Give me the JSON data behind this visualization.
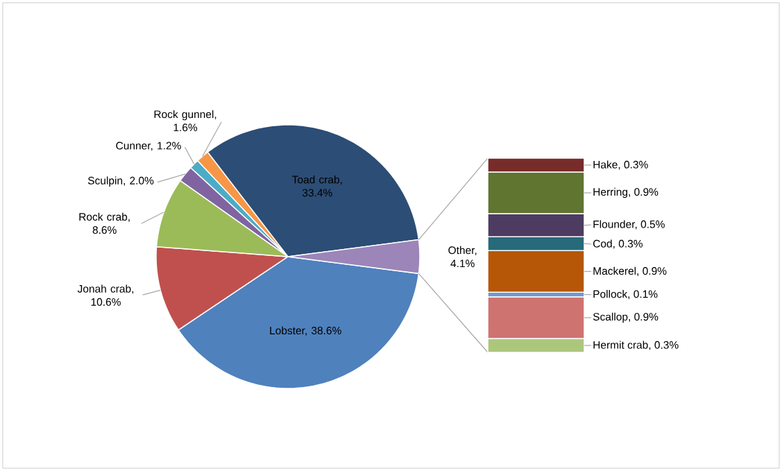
{
  "chart_data": [
    {
      "type": "pie",
      "categories": [
        null,
        null,
        null,
        null,
        null,
        null,
        null,
        null
      ],
      "values": [
        38.6,
        10.6,
        8.6,
        2.0,
        1.2,
        1.6,
        33.4,
        4.1
      ],
      "colors": [
        "#4f81bd",
        "#c0504d",
        "#9bbb59",
        "#8064a2",
        "#4bacc6",
        "#f79646",
        "#2c4d75",
        "#9c85b8"
      ],
      "value_labels": [
        "Lobster, 38.6%",
        "Jonah crab, 10.6%",
        "Rock crab, 8.6%",
        "Sculpin, 2.0%",
        "Cunner, 1.2%",
        "Rock gunnel, 1.6%",
        "Toad crab, 33.4%",
        "Other, 4.1%"
      ]
    },
    {
      "type": "bar",
      "stacked": true,
      "categories": [
        null
      ],
      "series": [
        {
          "color": "#acc77c",
          "values": [
            0.3
          ],
          "value_labels": [
            "Hermit crab, 0.3%"
          ]
        },
        {
          "color": "#cf7371",
          "values": [
            0.9
          ],
          "value_labels": [
            "Scallop, 0.9%"
          ]
        },
        {
          "color": "#729aca",
          "values": [
            0.1
          ],
          "value_labels": [
            "Pollock, 0.1%"
          ]
        },
        {
          "color": "#b65708",
          "values": [
            0.9
          ],
          "value_labels": [
            "Mackerel, 0.9%"
          ]
        },
        {
          "color": "#276a7c",
          "values": [
            0.3
          ],
          "value_labels": [
            "Cod, 0.3%"
          ]
        },
        {
          "color": "#4d3b62",
          "values": [
            0.5
          ],
          "value_labels": [
            "Flounder, 0.5%"
          ]
        },
        {
          "color": "#5f7530",
          "values": [
            0.9
          ],
          "value_labels": [
            "Herring, 0.9%"
          ]
        },
        {
          "color": "#772c2a",
          "values": [
            0.3
          ],
          "value_labels": [
            "Hake, 0.3%"
          ]
        }
      ]
    }
  ]
}
